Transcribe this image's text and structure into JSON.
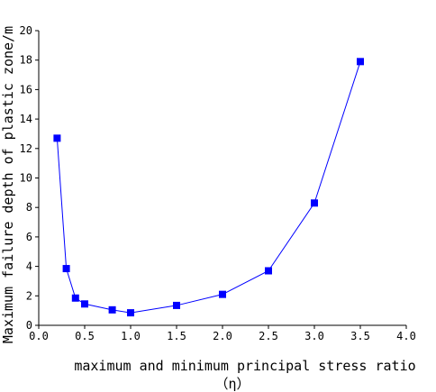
{
  "chart_data": {
    "type": "line",
    "xlabel": "maximum and minimum principal stress ratio",
    "xlabel_line2": "（η）",
    "ylabel": "Maximum failure depth of plastic zone/m",
    "xlim": [
      0.0,
      4.0
    ],
    "ylim": [
      0,
      20
    ],
    "x_ticks": [
      "0.0",
      "0.5",
      "1.0",
      "1.5",
      "2.0",
      "2.5",
      "3.0",
      "3.5",
      "4.0"
    ],
    "y_ticks": [
      "0",
      "2",
      "4",
      "6",
      "8",
      "10",
      "12",
      "14",
      "16",
      "18",
      "20"
    ],
    "grid": false,
    "series": [
      {
        "color": "#0000ff",
        "marker": "square",
        "points": [
          {
            "x": 0.2,
            "y": 12.7
          },
          {
            "x": 0.3,
            "y": 3.85
          },
          {
            "x": 0.4,
            "y": 1.85
          },
          {
            "x": 0.5,
            "y": 1.45
          },
          {
            "x": 0.8,
            "y": 1.05
          },
          {
            "x": 1.0,
            "y": 0.85
          },
          {
            "x": 1.5,
            "y": 1.35
          },
          {
            "x": 2.0,
            "y": 2.1
          },
          {
            "x": 2.5,
            "y": 3.7
          },
          {
            "x": 3.0,
            "y": 8.3
          },
          {
            "x": 3.5,
            "y": 17.9
          }
        ]
      }
    ]
  }
}
